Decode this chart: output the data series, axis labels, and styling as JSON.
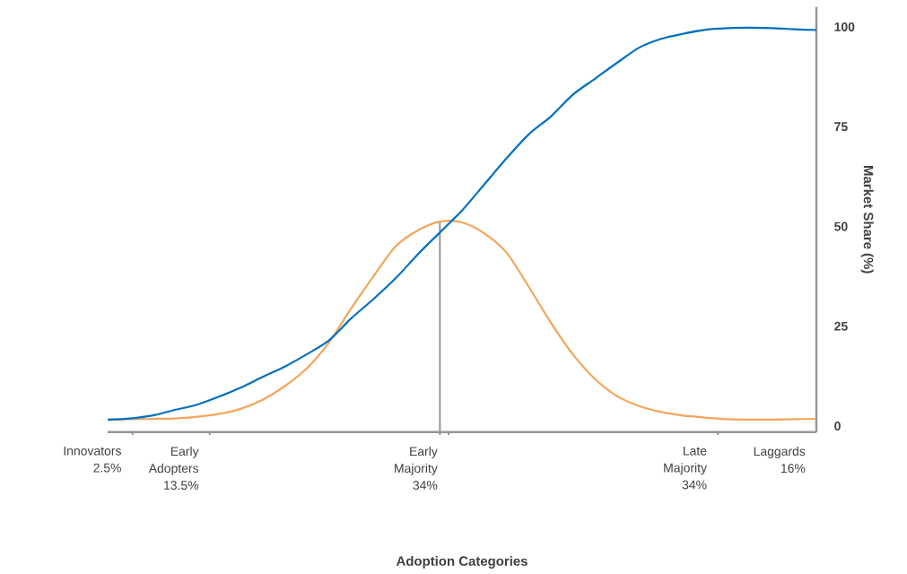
{
  "chart_data": {
    "type": "line",
    "ylabel": "Market Share (%)",
    "ylim": [
      -1.5,
      105
    ],
    "yticks": [
      0,
      25,
      50,
      75,
      100
    ],
    "categories": [
      null,
      null,
      null,
      null,
      null,
      null,
      null,
      null,
      null,
      null,
      null,
      null,
      null,
      null,
      null,
      null,
      null,
      null,
      null,
      null,
      null,
      null,
      null,
      null,
      null,
      null,
      null,
      null,
      null,
      null,
      null,
      null,
      null
    ],
    "annotations": [
      "Innovators 2.5%",
      "Early Adopters 13.5%",
      "Early Majority 34%",
      "Late Majority 34%",
      "Laggards 16%",
      "Adoption Categories"
    ],
    "grid": false,
    "line_style": "solid",
    "marker": "none",
    "series": [
      {
        "color": "#0070c0",
        "values": [
          1.6,
          1.9,
          2.6,
          4.0,
          5.3,
          7.3,
          9.6,
          12.3,
          14.9,
          18.0,
          21.5,
          27,
          31.8,
          37,
          43,
          48.5,
          54,
          60.5,
          67,
          73,
          77.5,
          83,
          87,
          91,
          94.8,
          97,
          98.3,
          99.3,
          99.7,
          99.8,
          99.7,
          99.4,
          99.2
        ]
      },
      {
        "color": "#f4a55a",
        "values": [
          1.6,
          1.7,
          1.8,
          1.9,
          2.3,
          3,
          4.3,
          6.6,
          10,
          14.5,
          21,
          29.5,
          37.5,
          45,
          49,
          51.2,
          51,
          48.3,
          43.5,
          35,
          26,
          18,
          11.8,
          7.5,
          5,
          3.5,
          2.6,
          2.1,
          1.7,
          1.6,
          1.6,
          1.7,
          1.8
        ]
      }
    ]
  }
}
